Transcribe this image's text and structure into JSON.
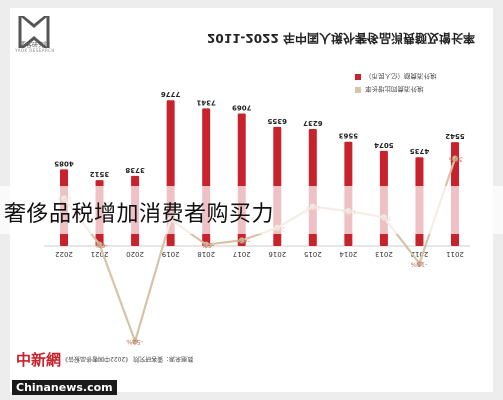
{
  "title": "2011-2022 年中国人境外奢侈品消费额及增长率",
  "caption": "奢侈品税增加消费者购买力",
  "logo": {
    "name": "要客研究院",
    "sub": "YAOK RESEARCH"
  },
  "source": "数据来源：要客研究院 《2022中国奢侈品报告》",
  "watermark": {
    "brand": "中新網",
    "url": "Chinanews.com"
  },
  "colors": {
    "bar": "#c8232c",
    "line": "#d6c3a8",
    "marker": "#c8b59a"
  },
  "chart_data": {
    "type": "bar",
    "categories": [
      "2011",
      "2012",
      "2013",
      "2014",
      "2015",
      "2016",
      "2017",
      "2018",
      "2019",
      "2020",
      "2021",
      "2022"
    ],
    "series": [
      {
        "name": "境外消费额（亿人民币）",
        "values": [
          5542,
          4735,
          5074,
          5563,
          6237,
          6355,
          7069,
          7341,
          7776,
          3738,
          3512,
          4085
        ]
      },
      {
        "name": "境外消费同比增长率",
        "values": [
          35,
          -15,
          7,
          10,
          12,
          2,
          -4,
          -6,
          6,
          -52,
          -6,
          16
        ],
        "labels": [
          "35%",
          "-15%",
          "7%",
          "10%",
          "12%",
          "2%",
          "-4%",
          "-6%",
          "6%",
          "-52%",
          "-6%",
          "16%"
        ]
      }
    ],
    "bar_labels": [
      "5542",
      "4735",
      "5074",
      "5563",
      "6237",
      "6355",
      "7069",
      "7341",
      "7776",
      "3738",
      "3512",
      "4085"
    ],
    "legend": [
      "境外消费额（亿人民币）",
      "境外消费同比增长率"
    ]
  }
}
